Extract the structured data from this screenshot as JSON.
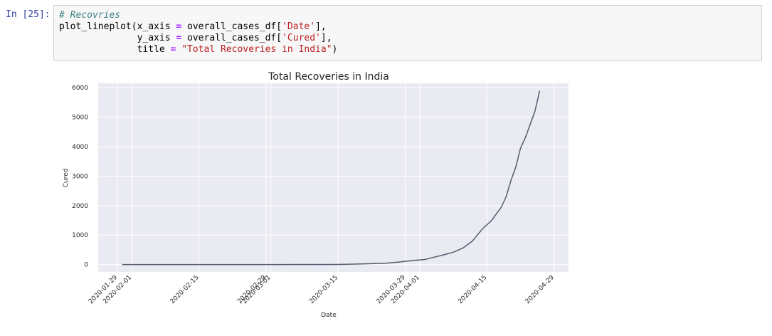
{
  "cell": {
    "prompt": "In [25]:",
    "comment": "# Recovries",
    "line1_fn": "plot_lineplot",
    "line1_pre": "(x_axis ",
    "line1_eq": "=",
    "line1_mid": " overall_cases_df[",
    "line1_str": "'Date'",
    "line1_end": "],",
    "line2_pre": "              y_axis ",
    "line2_eq": "=",
    "line2_mid": " overall_cases_df[",
    "line2_str": "'Cured'",
    "line2_end": "],",
    "line3_pre": "              title ",
    "line3_eq": "=",
    "line3_sp": " ",
    "line3_str": "\"Total Recoveries in India\"",
    "line3_end": ")"
  },
  "chart_data": {
    "type": "line",
    "title": "Total Recoveries in India",
    "xlabel": "Date",
    "ylabel": "Cured",
    "xlim": [
      "2020-01-25",
      "2020-05-02"
    ],
    "ylim": [
      -250,
      6150
    ],
    "x_ticks": [
      "2020-01-29",
      "2020-02-01",
      "2020-02-15",
      "2020-02-29",
      "2020-03-01",
      "2020-03-15",
      "2020-03-29",
      "2020-04-01",
      "2020-04-15",
      "2020-04-29"
    ],
    "y_ticks": [
      0,
      1000,
      2000,
      3000,
      4000,
      5000,
      6000
    ],
    "grid": true,
    "line_color": "#555b6e",
    "background_color": "#eaeaf2",
    "series": [
      {
        "x": [
          "2020-01-30",
          "2020-02-15",
          "2020-03-01",
          "2020-03-15",
          "2020-03-20",
          "2020-03-25",
          "2020-03-28",
          "2020-03-31",
          "2020-04-02",
          "2020-04-04",
          "2020-04-06",
          "2020-04-08",
          "2020-04-10",
          "2020-04-12",
          "2020-04-14",
          "2020-04-16",
          "2020-04-18",
          "2020-04-19",
          "2020-04-20",
          "2020-04-21",
          "2020-04-22",
          "2020-04-23",
          "2020-04-24",
          "2020-04-25",
          "2020-04-26"
        ],
        "values": [
          0,
          0,
          0,
          3,
          20,
          45,
          90,
          145,
          170,
          250,
          330,
          420,
          560,
          800,
          1200,
          1500,
          1950,
          2300,
          2850,
          3300,
          3950,
          4300,
          4750,
          5200,
          5900
        ]
      }
    ]
  }
}
